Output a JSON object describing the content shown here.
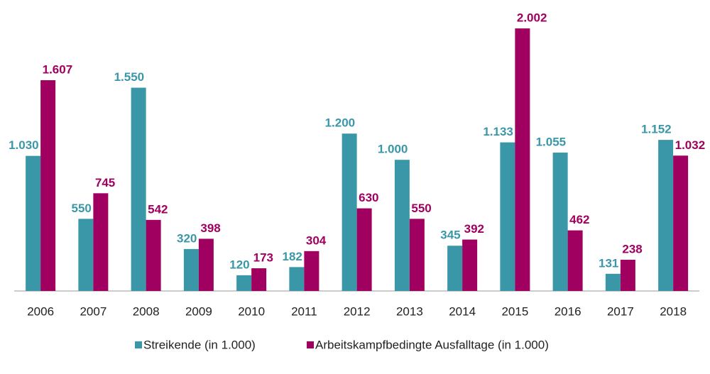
{
  "chart_data": {
    "type": "bar",
    "categories": [
      "2006",
      "2007",
      "2008",
      "2009",
      "2010",
      "2011",
      "2012",
      "2013",
      "2014",
      "2015",
      "2016",
      "2017",
      "2018"
    ],
    "series": [
      {
        "name": "Streikende (in 1.000)",
        "color": "#3a97a8",
        "values": [
          1030,
          550,
          1550,
          320,
          120,
          182,
          1200,
          1000,
          345,
          1133,
          1055,
          131,
          1152
        ],
        "value_labels": [
          "1.030",
          "550",
          "1.550",
          "320",
          "120",
          "182",
          "1.200",
          "1.000",
          "345",
          "1.133",
          "1.055",
          "131",
          "1.152"
        ]
      },
      {
        "name": "Arbeitskampfbedingte Ausfalltage (in 1.000)",
        "color": "#a0005f",
        "values": [
          1607,
          745,
          542,
          398,
          173,
          304,
          630,
          550,
          392,
          2002,
          462,
          238,
          1032
        ],
        "value_labels": [
          "1.607",
          "745",
          "542",
          "398",
          "173",
          "304",
          "630",
          "550",
          "392",
          "2.002",
          "462",
          "238",
          "1.032"
        ]
      }
    ],
    "ylim": [
      0,
      2000
    ]
  }
}
